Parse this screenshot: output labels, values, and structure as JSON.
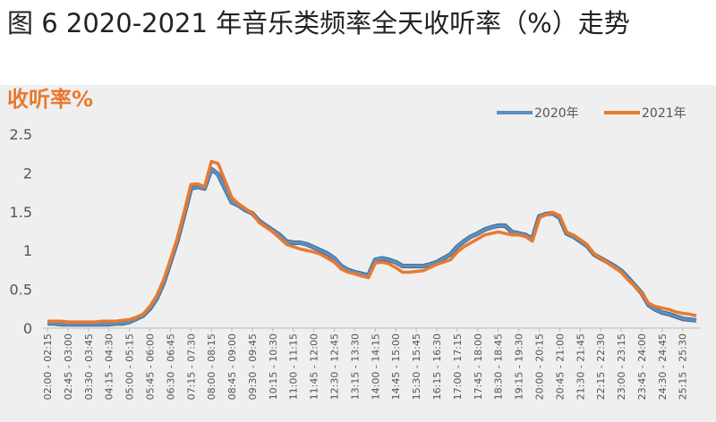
{
  "chart_data": {
    "type": "line",
    "title": "图 6 2020-2021 年音乐类频率全天收听率（%）走势",
    "y_label": "收听率%",
    "categories": [
      "02:00 - 02:15",
      null,
      null,
      "02:45 - 03:00",
      null,
      null,
      "03:30 - 03:45",
      null,
      null,
      "04:15 - 04:30",
      null,
      null,
      "05:00 - 05:15",
      null,
      null,
      "05:45 - 06:00",
      null,
      null,
      "06:30 - 06:45",
      null,
      null,
      "07:15 - 07:30",
      null,
      null,
      "08:00 - 08:15",
      null,
      null,
      "08:45 - 09:00",
      null,
      null,
      "09:30 - 09:45",
      null,
      null,
      "10:15 - 10:30",
      null,
      null,
      "11:00 - 11:15",
      null,
      null,
      "11:45 - 12:00",
      null,
      null,
      "12:30 - 12:45",
      null,
      null,
      "13:15 - 13:30",
      null,
      null,
      "14:00 - 14:15",
      null,
      null,
      "14:45 - 15:00",
      null,
      null,
      "15:30 - 15:45",
      null,
      null,
      "16:15 - 16:30",
      null,
      null,
      "17:00 - 17:15",
      null,
      null,
      "17:45 - 18:00",
      null,
      null,
      "18:30 - 18:45",
      null,
      null,
      "19:15 - 19:30",
      null,
      null,
      "20:00 - 20:15",
      null,
      null,
      "20:45 - 21:00",
      null,
      null,
      "21:30 - 21:45",
      null,
      null,
      "22:15 - 22:30",
      null,
      null,
      "23:00 - 23:15",
      null,
      null,
      "23:45 - 24:00",
      null,
      null,
      "24:30 - 24:45",
      null,
      null,
      "25:15 - 25:30",
      null,
      null
    ],
    "series": [
      {
        "name": "2020年",
        "color": "#5b8fc0",
        "values": [
          0.06,
          0.06,
          0.05,
          0.05,
          0.05,
          0.05,
          0.05,
          0.05,
          0.05,
          0.05,
          0.06,
          0.06,
          0.08,
          0.12,
          0.16,
          0.25,
          0.38,
          0.58,
          0.85,
          1.12,
          1.45,
          1.8,
          1.82,
          1.8,
          2.05,
          1.98,
          1.8,
          1.62,
          1.58,
          1.52,
          1.48,
          1.38,
          1.32,
          1.26,
          1.2,
          1.12,
          1.1,
          1.1,
          1.08,
          1.04,
          1.0,
          0.96,
          0.9,
          0.8,
          0.75,
          0.72,
          0.7,
          0.68,
          0.88,
          0.9,
          0.88,
          0.85,
          0.8,
          0.8,
          0.8,
          0.8,
          0.82,
          0.85,
          0.9,
          0.95,
          1.05,
          1.12,
          1.18,
          1.22,
          1.27,
          1.3,
          1.32,
          1.32,
          1.24,
          1.22,
          1.2,
          1.15,
          1.44,
          1.47,
          1.48,
          1.42,
          1.22,
          1.18,
          1.12,
          1.06,
          0.95,
          0.9,
          0.85,
          0.8,
          0.74,
          0.65,
          0.55,
          0.45,
          0.3,
          0.24,
          0.2,
          0.18,
          0.15,
          0.12,
          0.11,
          0.1
        ]
      },
      {
        "name": "2021年",
        "color": "#e9792f",
        "values": [
          0.09,
          0.09,
          0.09,
          0.08,
          0.08,
          0.08,
          0.08,
          0.08,
          0.09,
          0.09,
          0.09,
          0.1,
          0.11,
          0.14,
          0.18,
          0.28,
          0.42,
          0.62,
          0.88,
          1.15,
          1.48,
          1.85,
          1.86,
          1.82,
          2.15,
          2.12,
          1.9,
          1.68,
          1.6,
          1.54,
          1.48,
          1.36,
          1.3,
          1.24,
          1.16,
          1.08,
          1.05,
          1.02,
          1.0,
          0.98,
          0.95,
          0.9,
          0.85,
          0.76,
          0.72,
          0.7,
          0.67,
          0.65,
          0.84,
          0.85,
          0.83,
          0.78,
          0.72,
          0.72,
          0.73,
          0.74,
          0.78,
          0.82,
          0.85,
          0.88,
          0.98,
          1.05,
          1.1,
          1.15,
          1.2,
          1.22,
          1.24,
          1.22,
          1.2,
          1.2,
          1.18,
          1.12,
          1.42,
          1.46,
          1.49,
          1.45,
          1.24,
          1.2,
          1.14,
          1.08,
          0.96,
          0.9,
          0.84,
          0.78,
          0.72,
          0.62,
          0.54,
          0.45,
          0.32,
          0.28,
          0.26,
          0.24,
          0.21,
          0.19,
          0.18,
          0.16
        ]
      }
    ],
    "ylim": [
      0,
      2.5
    ],
    "yticks": [
      0,
      0.5,
      1,
      1.5,
      2,
      2.5
    ],
    "grid": false,
    "legend": "top-right"
  }
}
